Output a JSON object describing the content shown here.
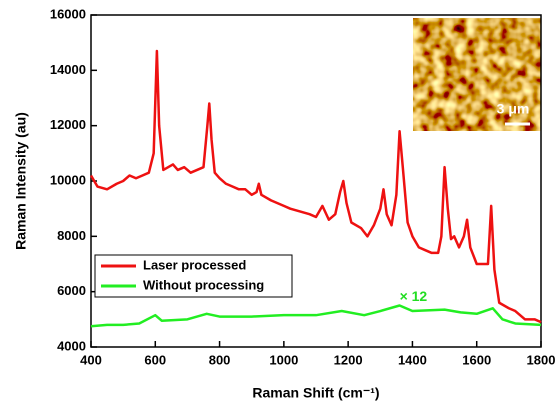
{
  "chart_data": {
    "type": "line",
    "xlabel": "Raman Shift (cm⁻¹)",
    "ylabel": "Raman Intensity (au)",
    "xlim": [
      400,
      1800
    ],
    "xticks": [
      400,
      600,
      800,
      1000,
      1200,
      1400,
      1600,
      1800
    ],
    "ylim": [
      4000,
      16000
    ],
    "yticks": [
      4000,
      6000,
      8000,
      10000,
      12000,
      14000,
      16000
    ],
    "legend": "lower left",
    "annotations": [
      {
        "text": "× 12",
        "x": 1360,
        "y": 5800,
        "color": "#22dd22"
      },
      {
        "text": "3 μm"
      }
    ],
    "series": [
      {
        "name": "Laser processed",
        "color": "#ee1111",
        "x": [
          400,
          420,
          450,
          480,
          500,
          520,
          540,
          560,
          580,
          595,
          605,
          612,
          625,
          640,
          655,
          670,
          690,
          710,
          730,
          750,
          762,
          768,
          775,
          785,
          800,
          820,
          840,
          860,
          880,
          900,
          915,
          922,
          930,
          960,
          1000,
          1020,
          1050,
          1080,
          1100,
          1120,
          1140,
          1160,
          1175,
          1185,
          1195,
          1210,
          1240,
          1260,
          1280,
          1300,
          1310,
          1320,
          1335,
          1350,
          1360,
          1370,
          1385,
          1400,
          1420,
          1440,
          1460,
          1480,
          1490,
          1500,
          1510,
          1520,
          1530,
          1545,
          1560,
          1570,
          1580,
          1600,
          1620,
          1635,
          1645,
          1655,
          1670,
          1700,
          1720,
          1750,
          1780,
          1800
        ],
        "values": [
          10200,
          9800,
          9700,
          9900,
          10000,
          10200,
          10100,
          10200,
          10300,
          11000,
          14700,
          12000,
          10400,
          10500,
          10600,
          10400,
          10500,
          10300,
          10400,
          10500,
          12000,
          12800,
          11500,
          10300,
          10100,
          9900,
          9800,
          9700,
          9700,
          9500,
          9600,
          9900,
          9500,
          9300,
          9100,
          9000,
          8900,
          8800,
          8700,
          9100,
          8600,
          8800,
          9600,
          10000,
          9200,
          8500,
          8300,
          8000,
          8400,
          9000,
          9700,
          8800,
          8400,
          9500,
          11800,
          10500,
          8500,
          8000,
          7600,
          7500,
          7400,
          7400,
          8000,
          10500,
          9000,
          7900,
          8000,
          7600,
          8000,
          8600,
          7600,
          7000,
          7000,
          7000,
          9100,
          6800,
          5600,
          5400,
          5300,
          5000,
          5000,
          4900
        ]
      },
      {
        "name": "Without processing",
        "color": "#22ee22",
        "x": [
          400,
          450,
          500,
          550,
          600,
          620,
          700,
          760,
          800,
          900,
          1000,
          1100,
          1180,
          1250,
          1300,
          1360,
          1400,
          1500,
          1550,
          1600,
          1650,
          1680,
          1720,
          1800
        ],
        "values": [
          4750,
          4800,
          4800,
          4850,
          5150,
          4950,
          5000,
          5200,
          5100,
          5100,
          5150,
          5150,
          5300,
          5150,
          5300,
          5500,
          5300,
          5350,
          5250,
          5200,
          5400,
          5000,
          4850,
          4800
        ]
      }
    ]
  }
}
